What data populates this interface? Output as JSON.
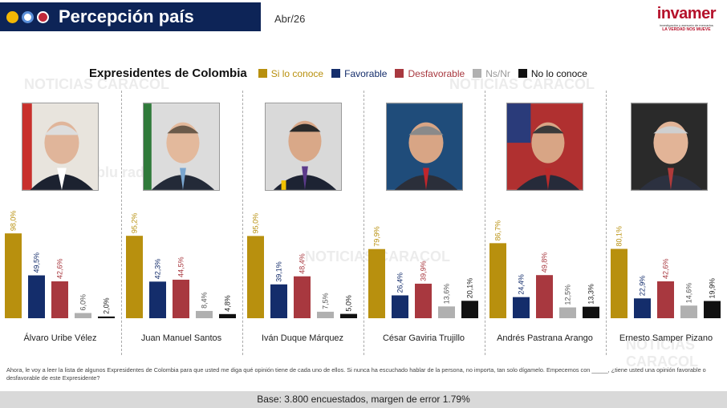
{
  "header": {
    "title": "Percepción país",
    "date": "Abr/26"
  },
  "logo": {
    "name": "invamer",
    "tagline": "investigación y asesoría de mercados",
    "slogan": "LA VERDAD NOS MUEVE"
  },
  "watermark": {
    "text": "NOTICIAS CARACOL",
    "brand": "blu radio"
  },
  "colors": {
    "si_lo_conoce": "#b8900e",
    "favorable": "#142d6b",
    "desfavorable": "#a8383f",
    "ns_nr": "#b0b0b0",
    "no_lo_conoce": "#111111",
    "header_bg": "#0d2457"
  },
  "chart_data": {
    "type": "bar",
    "title": "Expresidentes de Colombia",
    "legend": [
      "Si lo conoce",
      "Favorable",
      "Desfavorable",
      "Ns/Nr",
      "No lo conoce"
    ],
    "categories": [
      "Álvaro Uribe Vélez",
      "Juan Manuel Santos",
      "Iván Duque Márquez",
      "César Gaviria Trujillo",
      "Andrés Pastrana Arango",
      "Ernesto Samper Pizano"
    ],
    "series": [
      {
        "name": "Si lo conoce",
        "values": [
          98.0,
          95.2,
          95.0,
          79.9,
          86.7,
          80.1
        ],
        "labels": [
          "98,0%",
          "95,2%",
          "95,0%",
          "79,9%",
          "86,7%",
          "80,1%"
        ]
      },
      {
        "name": "Favorable",
        "values": [
          49.5,
          42.3,
          39.1,
          26.4,
          24.4,
          22.9
        ],
        "labels": [
          "49,5%",
          "42,3%",
          "39,1%",
          "26,4%",
          "24,4%",
          "22,9%"
        ]
      },
      {
        "name": "Desfavorable",
        "values": [
          42.6,
          44.5,
          48.4,
          39.9,
          49.8,
          42.6
        ],
        "labels": [
          "42,6%",
          "44,5%",
          "48,4%",
          "39,9%",
          "49,8%",
          "42,6%"
        ]
      },
      {
        "name": "Ns/Nr",
        "values": [
          6.0,
          8.4,
          7.5,
          13.6,
          12.5,
          14.6
        ],
        "labels": [
          "6,0%",
          "8,4%",
          "7,5%",
          "13,6%",
          "12,5%",
          "14,6%"
        ]
      },
      {
        "name": "No lo conoce",
        "values": [
          2.0,
          4.8,
          5.0,
          20.1,
          13.3,
          19.9
        ],
        "labels": [
          "2,0%",
          "4,8%",
          "5,0%",
          "20,1%",
          "13,3%",
          "19,9%"
        ]
      }
    ],
    "ylim": [
      0,
      100
    ]
  },
  "question": "Ahora, le voy a leer la lista de algunos Expresidentes de Colombia para que usted me diga qué opinión tiene de cada uno de ellos. Si nunca ha escuchado hablar de la persona, no importa, tan solo dígamelo. Empecemos con _____, ¿tiene usted una opinión favorable o desfavorable de este Expresidente?",
  "footer": "Base: 3.800 encuestados, margen de error 1.79%"
}
